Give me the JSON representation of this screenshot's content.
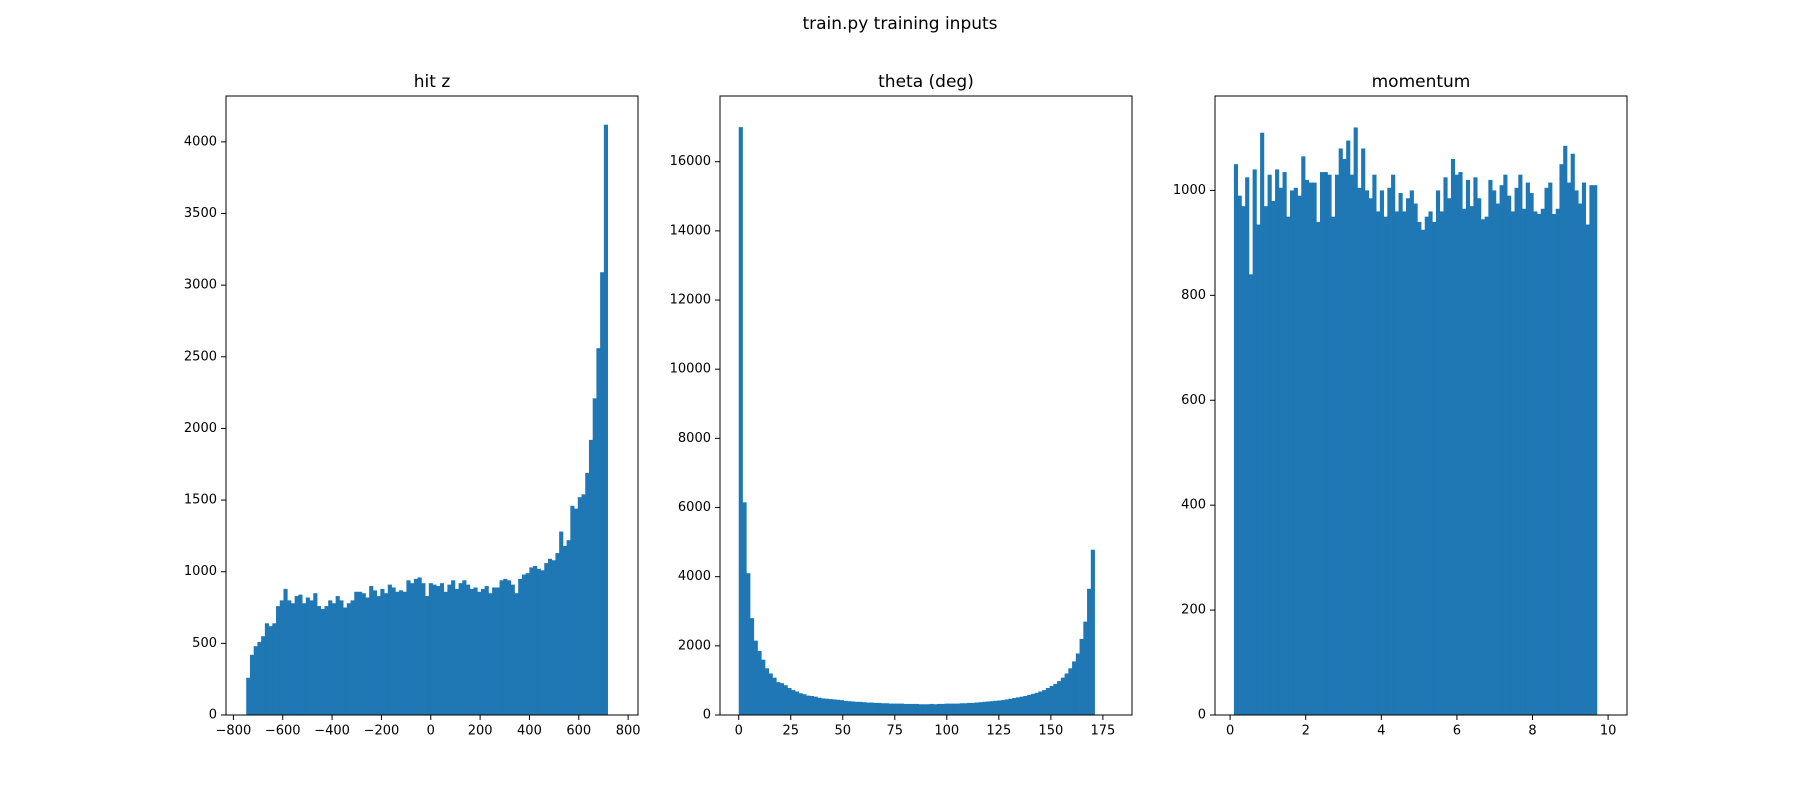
{
  "figure": {
    "suptitle": "train.py training inputs",
    "bar_color": "#1f77b4"
  },
  "chart_data": [
    {
      "type": "bar",
      "title": "hit z",
      "xlabel": "",
      "ylabel": "",
      "xlim": [
        -830,
        840
      ],
      "ylim": [
        0,
        4320
      ],
      "xticks": [
        -800,
        -600,
        -400,
        -200,
        0,
        200,
        400,
        600,
        800
      ],
      "xtick_labels": [
        "−800",
        "−600",
        "−400",
        "−200",
        "0",
        "200",
        "400",
        "600",
        "800"
      ],
      "yticks": [
        0,
        500,
        1000,
        1500,
        2000,
        2500,
        3000,
        3500,
        4000
      ],
      "ytick_labels": [
        "0",
        "500",
        "1000",
        "1500",
        "2000",
        "2500",
        "3000",
        "3500",
        "4000"
      ],
      "bins": {
        "start": -748,
        "width": 15.1
      },
      "values": [
        260,
        420,
        480,
        510,
        550,
        640,
        620,
        640,
        760,
        800,
        880,
        800,
        780,
        830,
        840,
        780,
        820,
        800,
        850,
        760,
        740,
        760,
        800,
        780,
        830,
        800,
        750,
        780,
        800,
        860,
        860,
        850,
        820,
        900,
        870,
        830,
        880,
        850,
        910,
        890,
        860,
        870,
        860,
        940,
        920,
        950,
        960,
        920,
        830,
        920,
        910,
        900,
        920,
        860,
        910,
        940,
        880,
        920,
        940,
        910,
        880,
        890,
        860,
        880,
        900,
        850,
        890,
        890,
        940,
        950,
        940,
        910,
        850,
        950,
        980,
        990,
        1030,
        1040,
        1020,
        1010,
        1060,
        1090,
        1080,
        1130,
        1280,
        1180,
        1220,
        1460,
        1440,
        1520,
        1540,
        1690,
        1920,
        2210,
        2560,
        3090,
        4120
      ]
    },
    {
      "type": "bar",
      "title": "theta (deg)",
      "xlabel": "",
      "ylabel": "",
      "xlim": [
        -9,
        189
      ],
      "ylim": [
        0,
        17900
      ],
      "xticks": [
        0,
        25,
        50,
        75,
        100,
        125,
        150,
        175
      ],
      "xtick_labels": [
        "0",
        "25",
        "50",
        "75",
        "100",
        "125",
        "150",
        "175"
      ],
      "yticks": [
        0,
        2000,
        4000,
        6000,
        8000,
        10000,
        12000,
        14000,
        16000
      ],
      "ytick_labels": [
        "0",
        "2000",
        "4000",
        "6000",
        "8000",
        "10000",
        "12000",
        "14000",
        "16000"
      ],
      "bins": {
        "start": 0,
        "width": 1.8
      },
      "values": [
        17000,
        6150,
        4100,
        2800,
        2150,
        1850,
        1600,
        1350,
        1200,
        1080,
        950,
        920,
        860,
        780,
        720,
        680,
        630,
        600,
        560,
        550,
        530,
        500,
        480,
        470,
        460,
        450,
        440,
        430,
        410,
        400,
        390,
        380,
        380,
        370,
        360,
        360,
        350,
        350,
        340,
        340,
        330,
        330,
        330,
        330,
        320,
        320,
        320,
        320,
        310,
        310,
        310,
        320,
        310,
        320,
        320,
        330,
        330,
        330,
        330,
        340,
        340,
        350,
        350,
        360,
        370,
        380,
        390,
        400,
        410,
        420,
        430,
        450,
        470,
        490,
        510,
        530,
        550,
        580,
        610,
        640,
        680,
        720,
        780,
        840,
        900,
        980,
        1080,
        1200,
        1350,
        1550,
        1780,
        2200,
        2700,
        3650,
        4780
      ]
    },
    {
      "type": "bar",
      "title": "momentum",
      "xlabel": "",
      "ylabel": "",
      "xlim": [
        -0.4,
        10.5
      ],
      "ylim": [
        0,
        1180
      ],
      "xticks": [
        0,
        2,
        4,
        6,
        8,
        10
      ],
      "xtick_labels": [
        "0",
        "2",
        "4",
        "6",
        "8",
        "10"
      ],
      "yticks": [
        0,
        200,
        400,
        600,
        800,
        1000
      ],
      "ytick_labels": [
        "0",
        "200",
        "400",
        "600",
        "800",
        "1000"
      ],
      "bins": {
        "start": 0.1,
        "width": 0.099
      },
      "values": [
        1050,
        990,
        970,
        1025,
        840,
        1040,
        935,
        1110,
        970,
        1030,
        980,
        1040,
        1005,
        1035,
        950,
        1000,
        1005,
        990,
        1065,
        1020,
        1015,
        1015,
        940,
        1035,
        1035,
        1030,
        950,
        1030,
        1080,
        1060,
        1095,
        1030,
        1120,
        1005,
        1080,
        1000,
        985,
        1030,
        960,
        1000,
        950,
        1005,
        1030,
        960,
        995,
        960,
        985,
        1000,
        975,
        940,
        925,
        950,
        960,
        940,
        1000,
        960,
        1025,
        985,
        1060,
        1030,
        1035,
        965,
        1020,
        970,
        1025,
        985,
        945,
        950,
        1020,
        1000,
        975,
        1010,
        1030,
        990,
        960,
        1005,
        1030,
        965,
        1015,
        995,
        960,
        955,
        965,
        1005,
        1015,
        955,
        965,
        1050,
        1085,
        1015,
        1070,
        1000,
        975,
        1015,
        935,
        1010,
        1010
      ]
    }
  ]
}
